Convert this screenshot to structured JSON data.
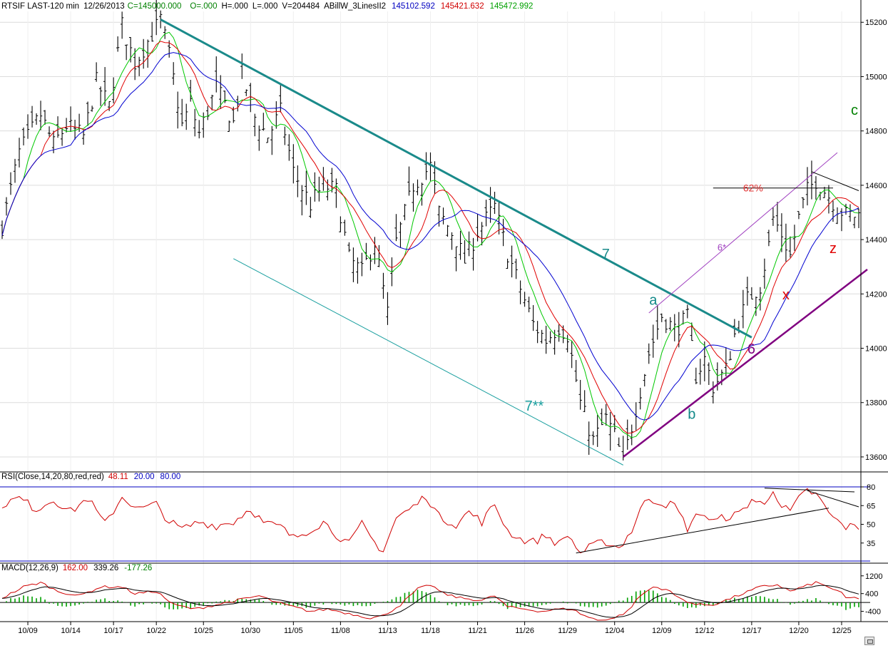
{
  "chart_data": {
    "type": "line",
    "header": {
      "symbol": "RTSIF LAST-120 min",
      "date": "12/26/2013",
      "close": "C=145000.000",
      "open": "O=.000",
      "high": "H=.000",
      "low": "L=.000",
      "volume": "V=204484",
      "study": "ABillW_3LinesII2",
      "line1": "145102.592",
      "line2": "145421.632",
      "line3": "145472.992"
    },
    "price_axis": {
      "ylim": [
        135500,
        152400
      ],
      "ticks": [
        "13600",
        "13800",
        "14000",
        "14200",
        "14400",
        "14600",
        "14800",
        "15000",
        "15200"
      ],
      "tick_values": [
        136000,
        138000,
        140000,
        142000,
        144000,
        146000,
        148000,
        150000,
        152000
      ]
    },
    "x_axis": {
      "ticks": [
        "10/09",
        "10/14",
        "10/17",
        "10/22",
        "10/25",
        "10/30",
        "11/05",
        "11/08",
        "11/13",
        "11/18",
        "11/21",
        "11/26",
        "11/29",
        "12/04",
        "12/09",
        "12/12",
        "12/17",
        "12/20",
        "12/25"
      ],
      "tick_index": [
        6,
        16,
        26,
        36,
        47,
        58,
        68,
        79,
        90,
        100,
        111,
        122,
        132,
        143,
        154,
        164,
        175,
        186,
        196
      ]
    },
    "price_series": {
      "name": "RTSIF",
      "key_points": [
        [
          0,
          144500
        ],
        [
          4,
          147200
        ],
        [
          9,
          148600
        ],
        [
          12,
          147500
        ],
        [
          15,
          148200
        ],
        [
          19,
          147800
        ],
        [
          22,
          149800
        ],
        [
          25,
          148900
        ],
        [
          28,
          151900
        ],
        [
          31,
          150500
        ],
        [
          37,
          152100
        ],
        [
          39,
          150800
        ],
        [
          42,
          148200
        ],
        [
          44,
          149000
        ],
        [
          46,
          147900
        ],
        [
          50,
          149600
        ],
        [
          54,
          148300
        ],
        [
          56,
          150100
        ],
        [
          59,
          148500
        ],
        [
          62,
          147800
        ],
        [
          65,
          148700
        ],
        [
          68,
          146500
        ],
        [
          72,
          145300
        ],
        [
          75,
          146000
        ],
        [
          78,
          145800
        ],
        [
          81,
          143300
        ],
        [
          84,
          142800
        ],
        [
          87,
          143900
        ],
        [
          90,
          141300
        ],
        [
          92,
          143900
        ],
        [
          96,
          146000
        ],
        [
          100,
          146700
        ],
        [
          102,
          145000
        ],
        [
          106,
          144000
        ],
        [
          108,
          143200
        ],
        [
          111,
          144300
        ],
        [
          115,
          145200
        ],
        [
          118,
          143500
        ],
        [
          121,
          142200
        ],
        [
          124,
          140900
        ],
        [
          127,
          140300
        ],
        [
          130,
          140800
        ],
        [
          132,
          140500
        ],
        [
          135,
          138000
        ],
        [
          138,
          136600
        ],
        [
          141,
          137400
        ],
        [
          143,
          136800
        ],
        [
          145,
          135800
        ],
        [
          148,
          137800
        ],
        [
          151,
          139800
        ],
        [
          154,
          141200
        ],
        [
          157,
          140700
        ],
        [
          160,
          141100
        ],
        [
          162,
          139000
        ],
        [
          164,
          139600
        ],
        [
          166,
          138600
        ],
        [
          169,
          139200
        ],
        [
          171,
          140500
        ],
        [
          174,
          141800
        ],
        [
          177,
          142300
        ],
        [
          179,
          143800
        ],
        [
          180,
          144800
        ],
        [
          182,
          144200
        ],
        [
          184,
          143400
        ],
        [
          186,
          144800
        ],
        [
          188,
          145800
        ],
        [
          190,
          146200
        ],
        [
          193,
          145600
        ],
        [
          195,
          145200
        ],
        [
          197,
          144900
        ]
      ]
    },
    "moving_averages": [
      {
        "color": "#00c800",
        "period": 6
      },
      {
        "color": "#e00000",
        "period": 10
      },
      {
        "color": "#0000d0",
        "period": 17
      }
    ],
    "trendlines": [
      {
        "from": [
          37,
          152100
        ],
        "to": [
          175,
          140400
        ],
        "color": "#1a8a8a",
        "label": "7"
      },
      {
        "from": [
          54,
          143300
        ],
        "to": [
          145,
          135700
        ],
        "color": "#1a9f9f",
        "label": "7**"
      },
      {
        "from": [
          145,
          136000
        ],
        "to": [
          202,
          142900
        ],
        "color": "#800080",
        "label": "6"
      },
      {
        "from": [
          151,
          141300
        ],
        "to": [
          195,
          147200
        ],
        "color": "#a040c0",
        "label": "6*"
      },
      {
        "from": [
          189,
          146500
        ],
        "to": [
          200,
          145800
        ],
        "color": "#000000",
        "label": ""
      }
    ],
    "horizontal_level": {
      "value": 145900,
      "label": "62%",
      "color": "#e03030"
    },
    "wave_labels": [
      {
        "text": "a",
        "color": "#118888",
        "at": [
          152,
          141600
        ]
      },
      {
        "text": "b",
        "color": "#118888",
        "at": [
          161,
          137400
        ]
      },
      {
        "text": "c",
        "color": "#008000",
        "at": [
          199,
          148600
        ]
      },
      {
        "text": "x",
        "color": "#e00000",
        "at": [
          183,
          141800
        ]
      },
      {
        "text": "z",
        "color": "#e00000",
        "at": [
          194,
          143500
        ]
      }
    ],
    "rsi": {
      "label": "RSI(Close,14,20,80,red,red)",
      "value": "48.11",
      "lower": "20.00",
      "upper": "80.00",
      "ylim": [
        20,
        84
      ],
      "ticks": [
        "80",
        "65",
        "50",
        "35"
      ],
      "tick_values": [
        80,
        65,
        50,
        35
      ],
      "key_points": [
        [
          0,
          66
        ],
        [
          4,
          71
        ],
        [
          8,
          62
        ],
        [
          12,
          70
        ],
        [
          16,
          60
        ],
        [
          20,
          71
        ],
        [
          24,
          50
        ],
        [
          28,
          72
        ],
        [
          32,
          62
        ],
        [
          36,
          66
        ],
        [
          39,
          52
        ],
        [
          42,
          46
        ],
        [
          46,
          52
        ],
        [
          50,
          49
        ],
        [
          54,
          52
        ],
        [
          58,
          63
        ],
        [
          61,
          51
        ],
        [
          65,
          48
        ],
        [
          68,
          39
        ],
        [
          72,
          46
        ],
        [
          75,
          52
        ],
        [
          78,
          42
        ],
        [
          81,
          34
        ],
        [
          84,
          50
        ],
        [
          87,
          35
        ],
        [
          89,
          29
        ],
        [
          92,
          55
        ],
        [
          96,
          64
        ],
        [
          99,
          73
        ],
        [
          102,
          56
        ],
        [
          106,
          50
        ],
        [
          109,
          60
        ],
        [
          112,
          52
        ],
        [
          115,
          66
        ],
        [
          118,
          45
        ],
        [
          121,
          38
        ],
        [
          124,
          36
        ],
        [
          127,
          41
        ],
        [
          130,
          34
        ],
        [
          132,
          42
        ],
        [
          135,
          27
        ],
        [
          138,
          33
        ],
        [
          141,
          36
        ],
        [
          144,
          31
        ],
        [
          147,
          45
        ],
        [
          149,
          62
        ],
        [
          151,
          71
        ],
        [
          154,
          67
        ],
        [
          157,
          65
        ],
        [
          160,
          47
        ],
        [
          163,
          60
        ],
        [
          166,
          52
        ],
        [
          169,
          56
        ],
        [
          172,
          58
        ],
        [
          175,
          70
        ],
        [
          178,
          65
        ],
        [
          180,
          79
        ],
        [
          182,
          64
        ],
        [
          184,
          60
        ],
        [
          186,
          70
        ],
        [
          188,
          77
        ],
        [
          190,
          74
        ],
        [
          192,
          64
        ],
        [
          194,
          55
        ],
        [
          196,
          50
        ],
        [
          197,
          48
        ]
      ],
      "trendlines": [
        {
          "from": [
            134,
            27
          ],
          "to": [
            193,
            63
          ]
        },
        {
          "from": [
            178,
            79
          ],
          "to": [
            199,
            76
          ]
        },
        {
          "from": [
            188,
            77
          ],
          "to": [
            200,
            64
          ]
        }
      ]
    },
    "macd": {
      "label": "MACD(12,26,9)",
      "value": "162.00",
      "signal": "339.26",
      "hist": "-177.26",
      "ylim": [
        -800,
        1450
      ],
      "ticks": [
        "1200",
        "400",
        "-400"
      ],
      "tick_values": [
        1200,
        400,
        -400
      ],
      "key_points": [
        [
          0,
          200
        ],
        [
          5,
          700
        ],
        [
          9,
          900
        ],
        [
          13,
          500
        ],
        [
          18,
          300
        ],
        [
          23,
          700
        ],
        [
          28,
          700
        ],
        [
          31,
          400
        ],
        [
          36,
          500
        ],
        [
          40,
          -100
        ],
        [
          45,
          -300
        ],
        [
          50,
          -100
        ],
        [
          55,
          100
        ],
        [
          60,
          300
        ],
        [
          64,
          0
        ],
        [
          68,
          -200
        ],
        [
          72,
          -400
        ],
        [
          76,
          -300
        ],
        [
          81,
          -500
        ],
        [
          86,
          -700
        ],
        [
          89,
          -600
        ],
        [
          93,
          -100
        ],
        [
          97,
          600
        ],
        [
          100,
          800
        ],
        [
          103,
          400
        ],
        [
          107,
          200
        ],
        [
          112,
          100
        ],
        [
          115,
          300
        ],
        [
          118,
          -200
        ],
        [
          122,
          -300
        ],
        [
          126,
          -400
        ],
        [
          130,
          -300
        ],
        [
          133,
          -300
        ],
        [
          136,
          -600
        ],
        [
          139,
          -800
        ],
        [
          143,
          -700
        ],
        [
          146,
          -400
        ],
        [
          149,
          300
        ],
        [
          152,
          700
        ],
        [
          155,
          600
        ],
        [
          158,
          200
        ],
        [
          162,
          -100
        ],
        [
          166,
          -100
        ],
        [
          169,
          100
        ],
        [
          173,
          400
        ],
        [
          177,
          700
        ],
        [
          181,
          800
        ],
        [
          184,
          500
        ],
        [
          187,
          700
        ],
        [
          190,
          900
        ],
        [
          193,
          700
        ],
        [
          196,
          400
        ],
        [
          197,
          200
        ]
      ]
    }
  }
}
